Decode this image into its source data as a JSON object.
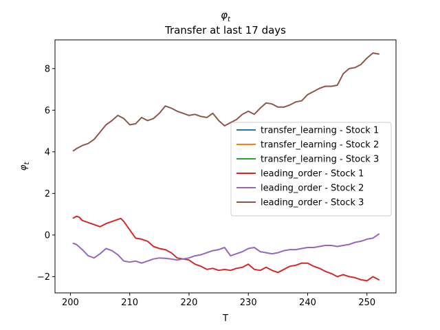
{
  "chart_data": {
    "type": "line",
    "title": "φ_t",
    "subtitle": "Transfer at last 17 days",
    "xlabel": "T",
    "ylabel": "φ_t",
    "xlim": [
      197.4,
      254.9
    ],
    "ylim": [
      -2.78,
      9.38
    ],
    "xticks": [
      200,
      210,
      220,
      230,
      240,
      250
    ],
    "yticks": [
      -2,
      0,
      2,
      4,
      6,
      8
    ],
    "grid": false,
    "legend_position": "center-right",
    "series": [
      {
        "name": "transfer_learning - Stock 1",
        "color": "#1f77b4",
        "x": [],
        "y": []
      },
      {
        "name": "transfer_learning - Stock 2",
        "color": "#ff7f0e",
        "x": [],
        "y": []
      },
      {
        "name": "transfer_learning - Stock 3",
        "color": "#2ca02c",
        "x": [],
        "y": []
      },
      {
        "name": "leading_order - Stock 1",
        "color": "#d62728",
        "x": [
          200.5,
          201,
          201.5,
          202,
          203,
          204,
          205,
          206,
          207,
          208,
          208.5,
          209,
          210,
          211,
          212,
          213,
          214,
          215,
          216,
          217,
          218,
          219,
          220,
          221,
          222,
          223,
          224,
          225,
          226,
          227,
          228,
          229,
          230,
          231,
          232,
          233,
          234,
          235,
          236,
          237,
          238,
          239,
          240,
          241,
          242,
          243,
          244,
          245,
          246,
          247,
          248,
          249,
          250,
          251,
          252
        ],
        "y": [
          0.82,
          0.9,
          0.85,
          0.7,
          0.6,
          0.5,
          0.4,
          0.55,
          0.65,
          0.75,
          0.8,
          0.65,
          0.25,
          -0.15,
          -0.2,
          -0.3,
          -0.55,
          -0.65,
          -0.7,
          -0.85,
          -1.1,
          -1.15,
          -1.2,
          -1.4,
          -1.5,
          -1.65,
          -1.6,
          -1.7,
          -1.65,
          -1.7,
          -1.6,
          -1.55,
          -1.4,
          -1.65,
          -1.7,
          -1.55,
          -1.7,
          -1.8,
          -1.65,
          -1.5,
          -1.45,
          -1.35,
          -1.35,
          -1.5,
          -1.6,
          -1.75,
          -1.85,
          -2.0,
          -1.9,
          -2.0,
          -2.05,
          -2.15,
          -2.2,
          -2.0,
          -2.15
        ]
      },
      {
        "name": "leading_order - Stock 2",
        "color": "#9467bd",
        "x": [
          200.5,
          201,
          202,
          203,
          204,
          205,
          206,
          207,
          208,
          209,
          210,
          211,
          212,
          213,
          214,
          215,
          216,
          217,
          218,
          219,
          220,
          221,
          222,
          223,
          224,
          225,
          226,
          227,
          228,
          229,
          230,
          231,
          232,
          233,
          234,
          235,
          236,
          237,
          238,
          239,
          240,
          241,
          242,
          243,
          244,
          245,
          246,
          247,
          248,
          249,
          250,
          251,
          252
        ],
        "y": [
          -0.4,
          -0.45,
          -0.7,
          -1.0,
          -1.1,
          -0.9,
          -0.65,
          -0.75,
          -0.95,
          -1.25,
          -1.3,
          -1.25,
          -1.35,
          -1.25,
          -1.15,
          -1.1,
          -1.12,
          -1.15,
          -1.2,
          -1.15,
          -1.1,
          -1.0,
          -0.95,
          -0.85,
          -0.75,
          -0.7,
          -0.6,
          -1.0,
          -0.9,
          -0.8,
          -0.65,
          -0.6,
          -0.8,
          -0.85,
          -0.9,
          -0.85,
          -0.75,
          -0.7,
          -0.7,
          -0.65,
          -0.6,
          -0.6,
          -0.55,
          -0.5,
          -0.5,
          -0.55,
          -0.5,
          -0.45,
          -0.35,
          -0.3,
          -0.2,
          -0.15,
          0.05
        ]
      },
      {
        "name": "leading_order - Stock 3",
        "color": "#8c564b",
        "x": [
          200.5,
          201,
          202,
          203,
          204,
          205,
          206,
          207,
          208,
          209,
          210,
          211,
          212,
          213,
          214,
          215,
          216,
          217,
          218,
          219,
          220,
          221,
          222,
          223,
          224,
          225,
          226,
          227,
          228,
          229,
          230,
          231,
          232,
          233,
          234,
          235,
          236,
          237,
          238,
          239,
          240,
          241,
          242,
          243,
          244,
          245,
          246,
          247,
          248,
          249,
          250,
          251,
          252
        ],
        "y": [
          4.05,
          4.15,
          4.3,
          4.4,
          4.6,
          4.95,
          5.3,
          5.5,
          5.75,
          5.6,
          5.3,
          5.35,
          5.65,
          5.5,
          5.6,
          5.85,
          6.2,
          6.1,
          5.95,
          5.85,
          5.75,
          5.8,
          5.7,
          5.65,
          5.85,
          5.5,
          5.25,
          5.4,
          5.55,
          5.8,
          5.95,
          5.8,
          6.1,
          6.35,
          6.3,
          6.15,
          6.15,
          6.25,
          6.4,
          6.45,
          6.75,
          6.9,
          7.05,
          7.15,
          7.15,
          7.2,
          7.75,
          8.0,
          8.05,
          8.2,
          8.5,
          8.75,
          8.7
        ]
      }
    ]
  }
}
